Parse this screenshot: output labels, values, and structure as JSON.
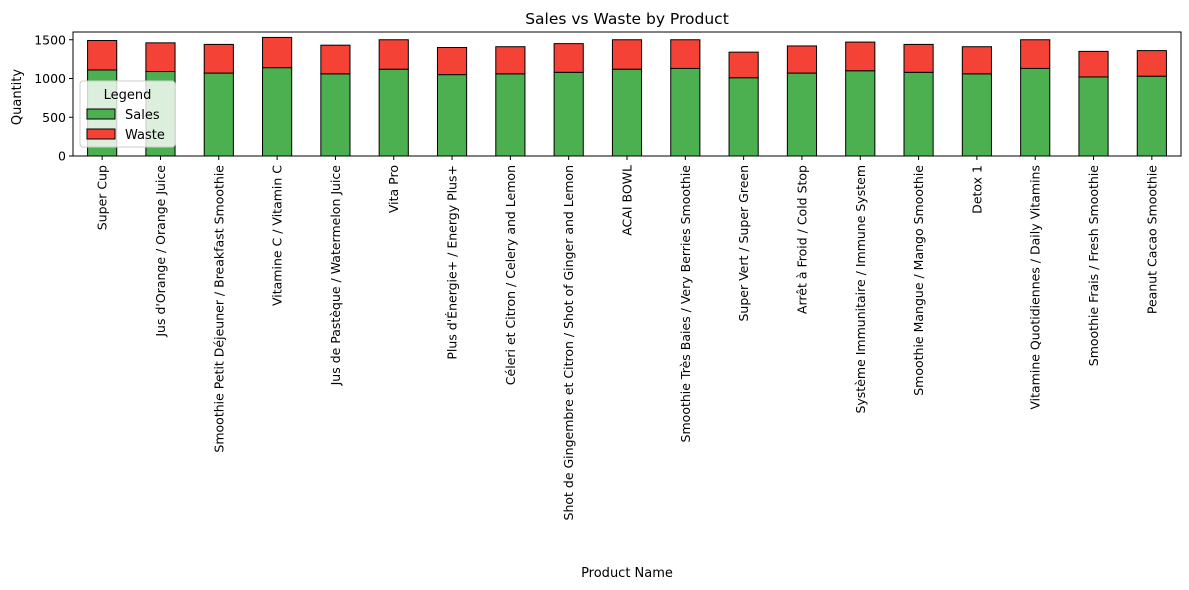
{
  "chart_data": {
    "type": "bar",
    "stacked": true,
    "title": "Sales vs Waste by Product",
    "xlabel": "Product Name",
    "ylabel": "Quantity",
    "ylim": [
      0,
      1600
    ],
    "yticks": [
      0,
      500,
      1000,
      1500
    ],
    "grid": false,
    "legend": {
      "title": "Legend",
      "placement": "upper-left"
    },
    "categories": [
      "Super Cup",
      "Jus d'Orange / Orange Juice",
      "Smoothie Petit Déjeuner / Breakfast Smoothie",
      "Vitamine C / Vitamin C",
      "Jus de Pastèque / Watermelon Juice",
      "Vita Pro",
      "Plus d'Énergie+ / Energy Plus+",
      "Céleri et Citron / Celery and Lemon",
      "Shot de Gingembre et Citron / Shot of Ginger and Lemon",
      "ACAI BOWL",
      "Smoothie Très Baies / Very Berries Smoothie",
      "Super Vert / Super Green",
      "Arrêt à Froid / Cold Stop",
      "Système Immunitaire / Immune System",
      "Smoothie Mangue / Mango Smoothie",
      "Detox 1",
      "Vitamine Quotidiennes / Daily Vitamins",
      "Smoothie Frais / Fresh Smoothie",
      "Peanut Cacao Smoothie"
    ],
    "series": [
      {
        "name": "Sales",
        "color": "#4caf50",
        "values": [
          1110,
          1090,
          1070,
          1140,
          1060,
          1120,
          1050,
          1060,
          1080,
          1120,
          1130,
          1010,
          1070,
          1100,
          1080,
          1060,
          1130,
          1020,
          1030
        ]
      },
      {
        "name": "Waste",
        "color": "#f44336",
        "values": [
          380,
          370,
          370,
          390,
          370,
          380,
          350,
          350,
          370,
          380,
          370,
          330,
          350,
          370,
          360,
          350,
          370,
          330,
          330
        ]
      }
    ]
  }
}
